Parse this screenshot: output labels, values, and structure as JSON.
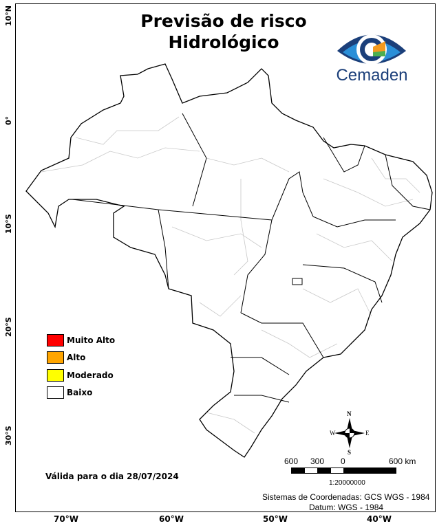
{
  "title_line1": "Previsão de risco",
  "title_line2": "Hidrológico",
  "logo": {
    "text": "Cemaden",
    "colors": [
      "#1b3f7a",
      "#2a8fd8",
      "#f39a1e",
      "#4caf50"
    ]
  },
  "axes": {
    "lat": [
      "10°N",
      "0°",
      "10°S",
      "20°S",
      "30°S"
    ],
    "lon": [
      "70°W",
      "60°W",
      "50°W",
      "40°W"
    ]
  },
  "legend": [
    {
      "label": "Muito Alto",
      "color": "#ff0000"
    },
    {
      "label": "Alto",
      "color": "#ffa500"
    },
    {
      "label": "Moderado",
      "color": "#ffff00"
    },
    {
      "label": "Baixo",
      "color": "#ffffff"
    }
  ],
  "validity": "Válida para o dia 28/07/2024",
  "compass": {
    "n": "N",
    "s": "S",
    "e": "E",
    "w": "W"
  },
  "scalebar": {
    "labels": [
      "600",
      "300",
      "0",
      "600 km"
    ],
    "ratio": "1:20000000"
  },
  "coords": {
    "line1": "Sistemas de Coordenadas: GCS WGS - 1984",
    "line2": "Datum: WGS - 1984"
  }
}
